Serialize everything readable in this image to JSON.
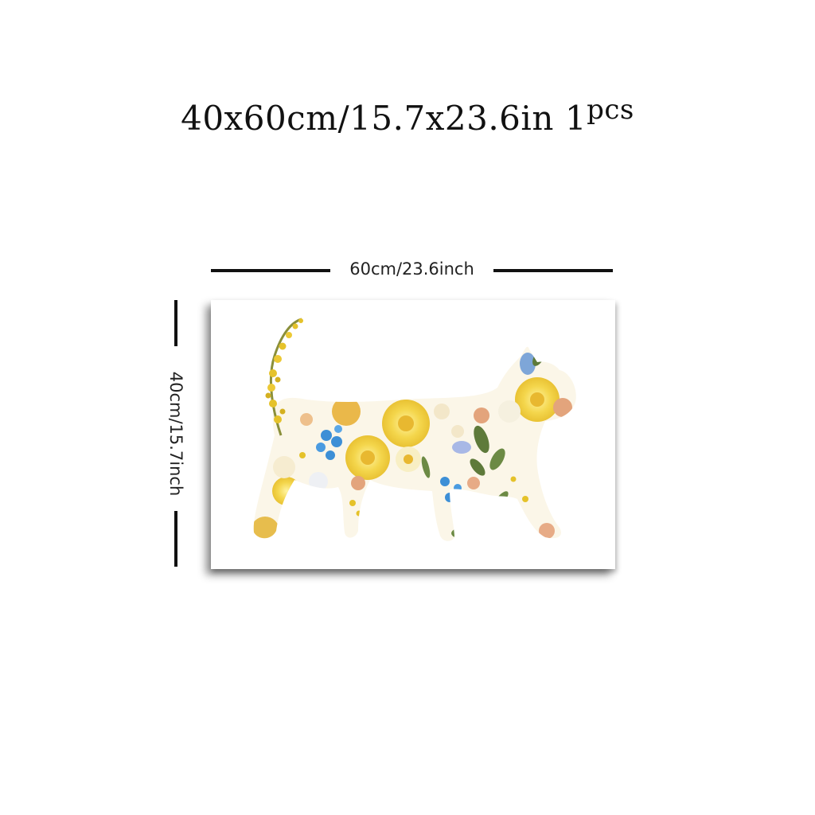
{
  "title": {
    "size_text": "40x60cm/15.7x23.6in",
    "quantity": "1",
    "quantity_unit": "pcs"
  },
  "dimensions": {
    "width_label": "60cm/23.6inch",
    "height_label": "40cm/15.7inch"
  },
  "artwork": {
    "subject": "cat-silhouette-made-of-pressed-flowers",
    "colors": {
      "yellow": "#f2d34a",
      "blue": "#3d8fd6",
      "green": "#5e7a3a",
      "peach": "#e3a47c",
      "cream": "#f5ead2"
    }
  }
}
